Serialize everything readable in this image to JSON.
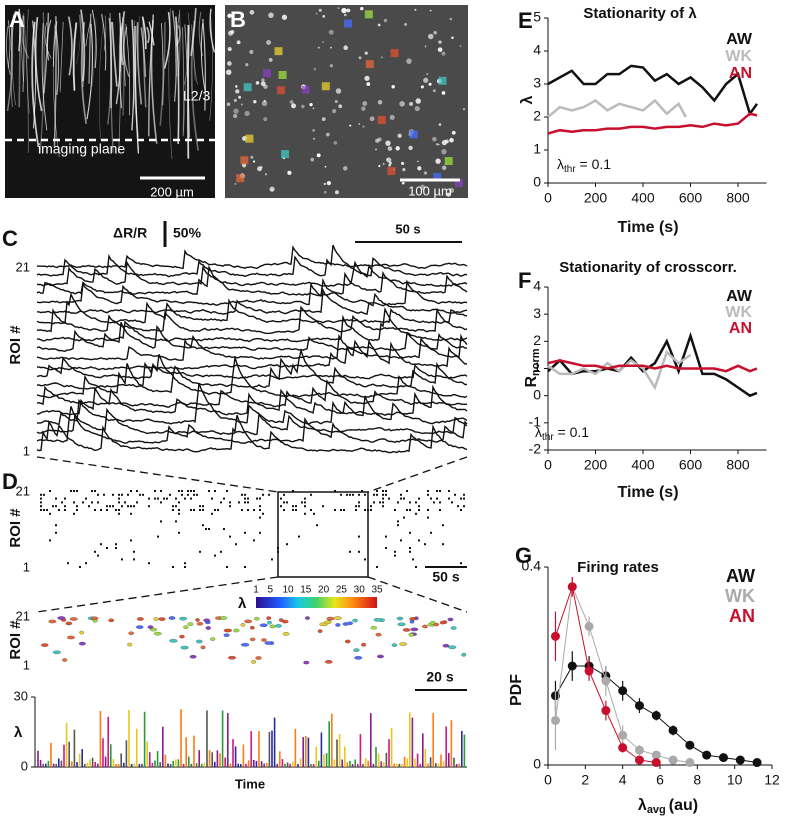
{
  "panel_a": {
    "label": "A",
    "layer": "L2/3",
    "plane": "imaging plane",
    "scale": "200 µm"
  },
  "panel_b": {
    "label": "B",
    "scale": "100 µm"
  },
  "panel_c": {
    "label": "C",
    "unit": "ΔR/R",
    "amp": "50%",
    "time": "50 s",
    "top": "21",
    "bottom": "1",
    "ylabel": "ROI #"
  },
  "panel_d": {
    "label": "D",
    "top": "21",
    "bottom": "1",
    "ylabel": "ROI #",
    "time": "50 s",
    "colorbar": {
      "label": "λ",
      "lim": [
        1,
        35
      ],
      "ticks": [
        1,
        5,
        10,
        15,
        20,
        25,
        30,
        35
      ]
    },
    "zoom": {
      "top": "21",
      "bottom": "1",
      "ylabel": "ROI #"
    },
    "bars": {
      "ylabel": "λ",
      "ylim": [
        0,
        30
      ],
      "yticks": [
        0,
        30
      ],
      "time": "20 s",
      "xlabel": "Time"
    }
  },
  "chart_data": [
    {
      "type": "line",
      "panel": "E",
      "title": "Stationarity of λ",
      "ylabel": "λ",
      "xlabel": "Time (s)",
      "annotation": [
        "λ",
        "thr",
        " = 0.1"
      ],
      "xlim": [
        0,
        920
      ],
      "xticks": [
        0,
        200,
        400,
        600,
        800
      ],
      "ylim": [
        0,
        5
      ],
      "yticks": [
        0,
        1,
        2,
        3,
        4,
        5
      ],
      "series": [
        {
          "name": "AW",
          "color": "#111111",
          "x": [
            0,
            50,
            100,
            150,
            200,
            250,
            300,
            350,
            400,
            450,
            500,
            550,
            600,
            650,
            700,
            750,
            800,
            850,
            880
          ],
          "values": [
            3.0,
            3.2,
            3.4,
            3.0,
            3.0,
            3.3,
            3.3,
            3.55,
            3.5,
            3.1,
            3.3,
            3.0,
            3.2,
            2.9,
            2.5,
            3.0,
            3.3,
            2.1,
            2.4
          ]
        },
        {
          "name": "WK",
          "color": "#bbbbbb",
          "x": [
            0,
            50,
            100,
            150,
            200,
            250,
            300,
            350,
            400,
            450,
            500,
            550,
            580
          ],
          "values": [
            2.0,
            2.3,
            2.2,
            2.3,
            2.5,
            2.2,
            2.4,
            2.3,
            2.2,
            2.5,
            2.1,
            2.4,
            2.0
          ]
        },
        {
          "name": "AN",
          "color": "#c8102e",
          "x": [
            0,
            50,
            100,
            150,
            200,
            250,
            300,
            350,
            400,
            450,
            500,
            550,
            600,
            650,
            700,
            750,
            800,
            850,
            880
          ],
          "values": [
            1.5,
            1.6,
            1.55,
            1.6,
            1.6,
            1.65,
            1.65,
            1.7,
            1.7,
            1.65,
            1.7,
            1.7,
            1.75,
            1.7,
            1.8,
            1.75,
            1.8,
            2.1,
            2.05
          ]
        }
      ]
    },
    {
      "type": "line",
      "panel": "F",
      "title": "Stationarity of crosscorr.",
      "ylabel": [
        "R",
        "norm"
      ],
      "xlabel": "Time (s)",
      "annotation": [
        "λ",
        "thr",
        " = 0.1"
      ],
      "xlim": [
        0,
        920
      ],
      "xticks": [
        0,
        200,
        400,
        600,
        800
      ],
      "ylim": [
        -2,
        4
      ],
      "yticks": [
        -2,
        -1,
        0,
        1,
        2,
        3,
        4
      ],
      "series": [
        {
          "name": "AW",
          "color": "#111111",
          "x": [
            0,
            50,
            100,
            150,
            200,
            250,
            300,
            350,
            400,
            450,
            500,
            550,
            600,
            650,
            700,
            750,
            800,
            850,
            880
          ],
          "values": [
            0.9,
            1.3,
            0.8,
            0.9,
            0.9,
            1.0,
            0.9,
            1.4,
            0.9,
            1.2,
            2.0,
            0.9,
            2.2,
            0.8,
            0.8,
            0.6,
            0.3,
            0.0,
            0.1
          ]
        },
        {
          "name": "WK",
          "color": "#bbbbbb",
          "x": [
            0,
            50,
            100,
            150,
            200,
            250,
            300,
            350,
            400,
            450,
            500,
            550,
            600
          ],
          "values": [
            1.1,
            0.8,
            0.8,
            1.0,
            0.8,
            1.2,
            0.9,
            1.3,
            1.0,
            0.3,
            1.6,
            1.2,
            1.5
          ]
        },
        {
          "name": "AN",
          "color": "#c8102e",
          "x": [
            0,
            50,
            100,
            150,
            200,
            250,
            300,
            350,
            400,
            450,
            500,
            550,
            600,
            650,
            700,
            750,
            800,
            850,
            880
          ],
          "values": [
            1.2,
            1.3,
            1.2,
            1.1,
            1.1,
            1.0,
            1.1,
            1.1,
            1.1,
            1.0,
            1.1,
            1.0,
            1.0,
            1.0,
            1.0,
            0.9,
            1.1,
            0.9,
            1.0
          ]
        }
      ]
    },
    {
      "type": "line",
      "panel": "G",
      "title": "Firing rates",
      "ylabel": "PDF",
      "xlabel": [
        "λ",
        "avg",
        "(au)"
      ],
      "markers": true,
      "xlim": [
        0,
        12
      ],
      "xticks": [
        0,
        2,
        4,
        6,
        8,
        10,
        12
      ],
      "ylim": [
        0,
        0.4
      ],
      "yticks": [
        0,
        0.4
      ],
      "series": [
        {
          "name": "AW",
          "color": "#111111",
          "x": [
            0.4,
            1.3,
            2.2,
            3.1,
            4.0,
            4.9,
            5.8,
            6.7,
            7.6,
            8.5,
            9.4,
            10.3,
            11.2
          ],
          "values": [
            0.14,
            0.2,
            0.2,
            0.18,
            0.15,
            0.12,
            0.1,
            0.07,
            0.04,
            0.02,
            0.015,
            0.01,
            0.005
          ],
          "errors": [
            0.03,
            0.03,
            0.02,
            0.02,
            0.02,
            0.015,
            0.01,
            0.01,
            0.008,
            0.005,
            0.005,
            0.004,
            0.003
          ]
        },
        {
          "name": "WK",
          "color": "#aaaaaa",
          "x": [
            0.4,
            1.3,
            2.2,
            3.1,
            4.0,
            4.9,
            5.8,
            6.7,
            7.6
          ],
          "values": [
            0.09,
            0.36,
            0.28,
            0.17,
            0.06,
            0.03,
            0.02,
            0.01,
            0.005
          ],
          "errors": [
            0.06,
            0.02,
            0.02,
            0.03,
            0.02,
            0.01,
            0.008,
            0.005,
            0.003
          ]
        },
        {
          "name": "AN",
          "color": "#c8102e",
          "x": [
            0.4,
            1.3,
            2.2,
            3.1,
            4.0,
            4.9,
            5.8
          ],
          "values": [
            0.26,
            0.36,
            0.19,
            0.11,
            0.035,
            0.01,
            0.005
          ],
          "errors": [
            0.05,
            0.02,
            0.02,
            0.02,
            0.01,
            0.005,
            0.003
          ]
        }
      ]
    }
  ]
}
